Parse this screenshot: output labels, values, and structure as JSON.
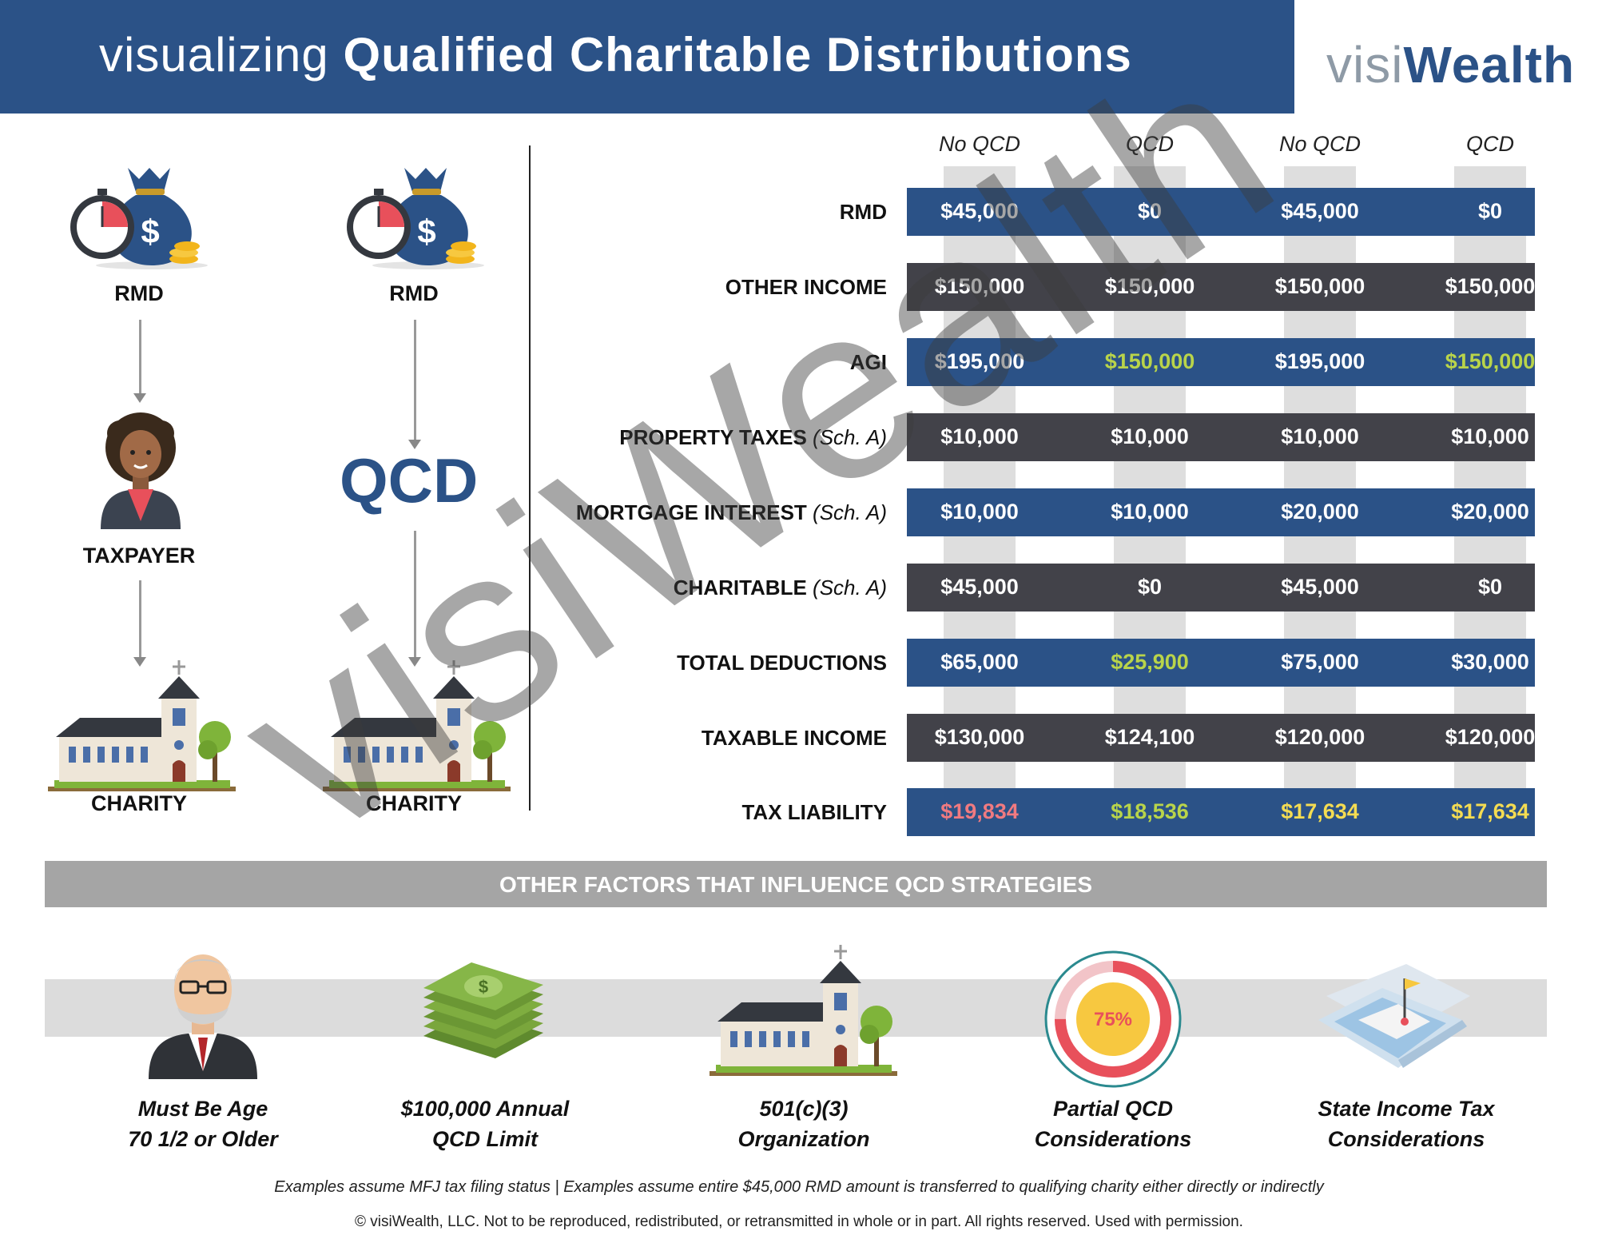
{
  "header": {
    "title_light": "visualizing ",
    "title_bold": "Qualified Charitable Distributions",
    "logo_a": "visi",
    "logo_b": "Wealth"
  },
  "flow_left": {
    "top": "RMD",
    "middle": "TAXPAYER",
    "bottom": "CHARITY"
  },
  "flow_right": {
    "top": "RMD",
    "middle": "QCD",
    "bottom": "CHARITY"
  },
  "table": {
    "columns": [
      "No QCD",
      "QCD",
      "No QCD",
      "QCD"
    ],
    "rows": [
      {
        "label": "RMD",
        "note": "",
        "style": "blue",
        "values": [
          "$45,000",
          "$0",
          "$45,000",
          "$0"
        ],
        "colors": [
          "white",
          "white",
          "white",
          "white"
        ]
      },
      {
        "label": "OTHER INCOME",
        "note": "",
        "style": "dark",
        "values": [
          "$150,000",
          "$150,000",
          "$150,000",
          "$150,000"
        ],
        "colors": [
          "white",
          "white",
          "white",
          "white"
        ]
      },
      {
        "label": "AGI",
        "note": "",
        "style": "blue",
        "values": [
          "$195,000",
          "$150,000",
          "$195,000",
          "$150,000"
        ],
        "colors": [
          "white",
          "green",
          "white",
          "green"
        ]
      },
      {
        "label": "PROPERTY TAXES",
        "note": "(Sch. A)",
        "style": "dark",
        "values": [
          "$10,000",
          "$10,000",
          "$10,000",
          "$10,000"
        ],
        "colors": [
          "white",
          "white",
          "white",
          "white"
        ]
      },
      {
        "label": "MORTGAGE INTEREST",
        "note": "(Sch. A)",
        "style": "blue",
        "values": [
          "$10,000",
          "$10,000",
          "$20,000",
          "$20,000"
        ],
        "colors": [
          "white",
          "white",
          "white",
          "white"
        ]
      },
      {
        "label": "CHARITABLE",
        "note": "(Sch. A)",
        "style": "dark",
        "values": [
          "$45,000",
          "$0",
          "$45,000",
          "$0"
        ],
        "colors": [
          "white",
          "white",
          "white",
          "white"
        ]
      },
      {
        "label": "TOTAL DEDUCTIONS",
        "note": "",
        "style": "blue",
        "values": [
          "$65,000",
          "$25,900",
          "$75,000",
          "$30,000"
        ],
        "colors": [
          "white",
          "green",
          "white",
          "white"
        ]
      },
      {
        "label": "TAXABLE INCOME",
        "note": "",
        "style": "dark",
        "values": [
          "$130,000",
          "$124,100",
          "$120,000",
          "$120,000"
        ],
        "colors": [
          "white",
          "white",
          "white",
          "white"
        ]
      },
      {
        "label": "TAX LIABILITY",
        "note": "",
        "style": "blue",
        "values": [
          "$19,834",
          "$18,536",
          "$17,634",
          "$17,634"
        ],
        "colors": [
          "red",
          "green",
          "yellow",
          "yellow"
        ]
      }
    ]
  },
  "watermark": "visiWealth",
  "factors": {
    "title": "OTHER FACTORS THAT INFLUENCE QCD STRATEGIES",
    "items": [
      {
        "line1": "Must Be  Age",
        "line2": "70 1/2 or Older",
        "icon": "elderly-man-icon"
      },
      {
        "line1": "$100,000  Annual",
        "line2": "QCD Limit",
        "icon": "money-stack-icon"
      },
      {
        "line1": "501(c)(3)",
        "line2": "Organization",
        "icon": "church-icon"
      },
      {
        "line1": "Partial QCD",
        "line2": "Considerations",
        "icon": "donut-gauge-icon",
        "gauge_text": "75%",
        "gauge_value": 0.75
      },
      {
        "line1": "State Income Tax",
        "line2": "Considerations",
        "icon": "map-pin-icon"
      }
    ]
  },
  "footnote": "Examples assume MFJ tax filing status | Examples assume entire $45,000 RMD amount is transferred to qualifying charity either directly or indirectly",
  "copyright": "© visiWealth, LLC. Not to be reproduced, redistributed, or retransmitted in whole or in part. All rights reserved. Used with permission.",
  "colors": {
    "brand_blue": "#2b5287",
    "dark_row": "#424249",
    "green": "#b9d44a",
    "red": "#f07a80",
    "yellow": "#f4dc52",
    "accent_red": "#e8505b"
  }
}
